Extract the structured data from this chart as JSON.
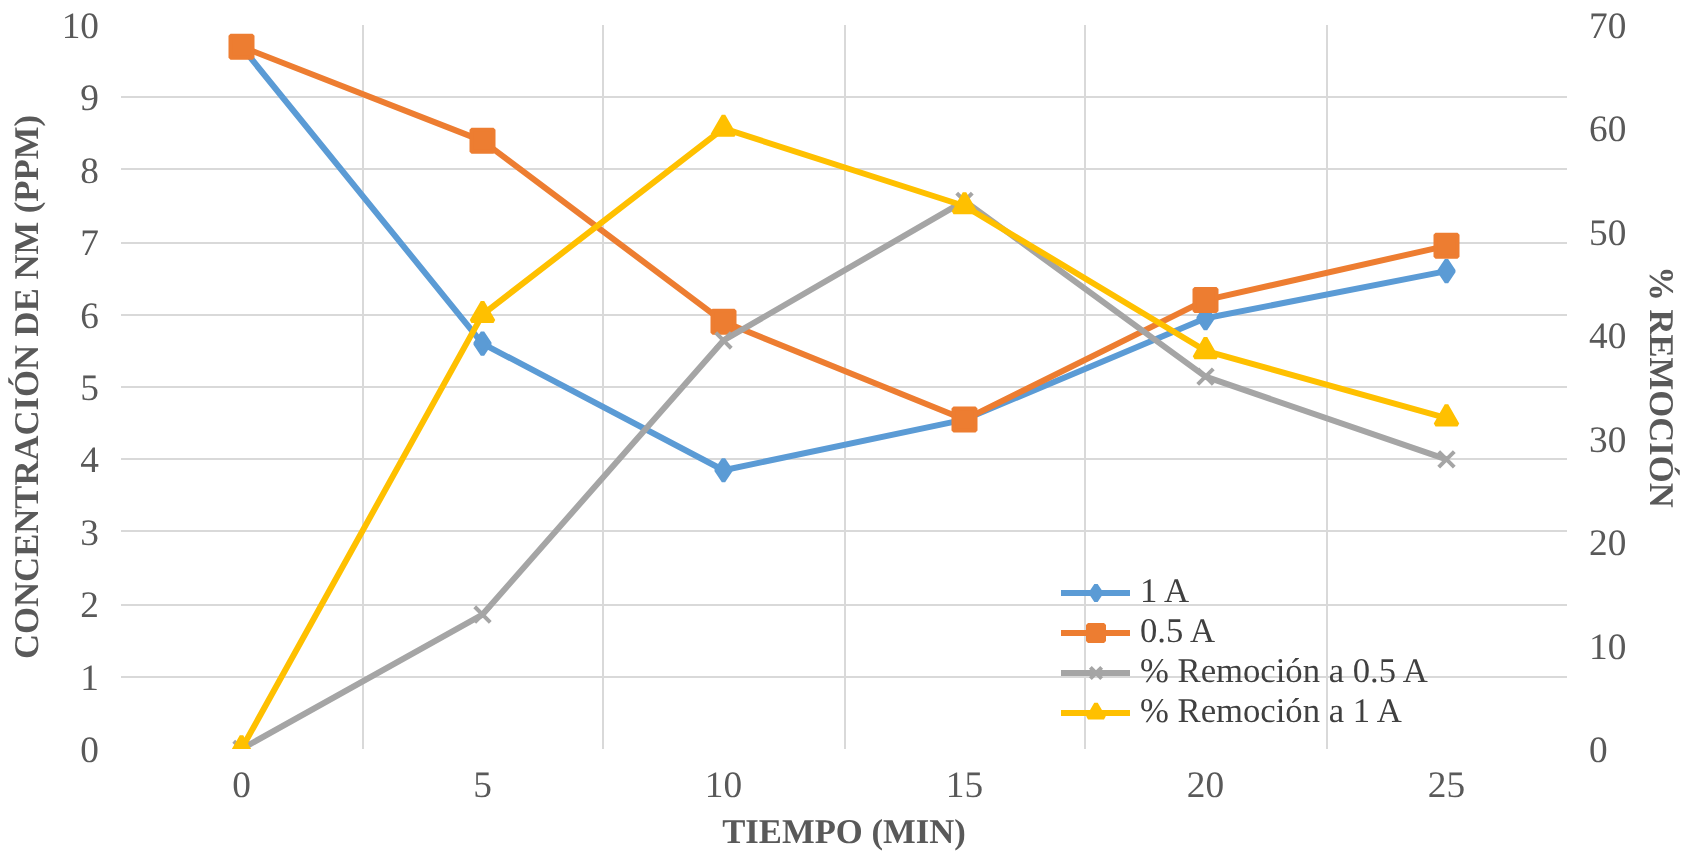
{
  "chart_data": {
    "type": "line",
    "xlabel": "TIEMPO (MIN)",
    "ylabel": "CONCENTRACIÓN DE NM (PPM)",
    "y2label": "% REMOCIÓN",
    "categories": [
      "0",
      "5",
      "10",
      "15",
      "20",
      "25"
    ],
    "ylim": [
      0,
      10
    ],
    "yticks": [
      0,
      1,
      2,
      3,
      4,
      5,
      6,
      7,
      8,
      9,
      10
    ],
    "y2lim": [
      0,
      70
    ],
    "y2ticks": [
      0,
      10,
      20,
      30,
      40,
      50,
      60,
      70
    ],
    "grid": true,
    "legend": "bottom right",
    "series": [
      {
        "name": "1 A",
        "color": "#5b9bd5",
        "marker": "diamond",
        "values": [
          9.7,
          5.6,
          3.85,
          4.55,
          5.95,
          6.6
        ]
      },
      {
        "name": "0.5 A",
        "color": "#ed7d31",
        "marker": "square",
        "values": [
          9.7,
          8.4,
          5.9,
          4.55,
          6.2,
          6.95
        ]
      },
      {
        "name": "% Remoción a 0.5 A",
        "color": "#a5a5a5",
        "marker": "cross",
        "axis": "y2",
        "values": [
          0,
          13,
          39.5,
          53,
          36,
          28
        ]
      },
      {
        "name": "% Remoción a 1 A",
        "color": "#ffc000",
        "marker": "triangle",
        "axis": "y2",
        "values": [
          0,
          42,
          60,
          52.5,
          38.5,
          32
        ]
      }
    ]
  }
}
